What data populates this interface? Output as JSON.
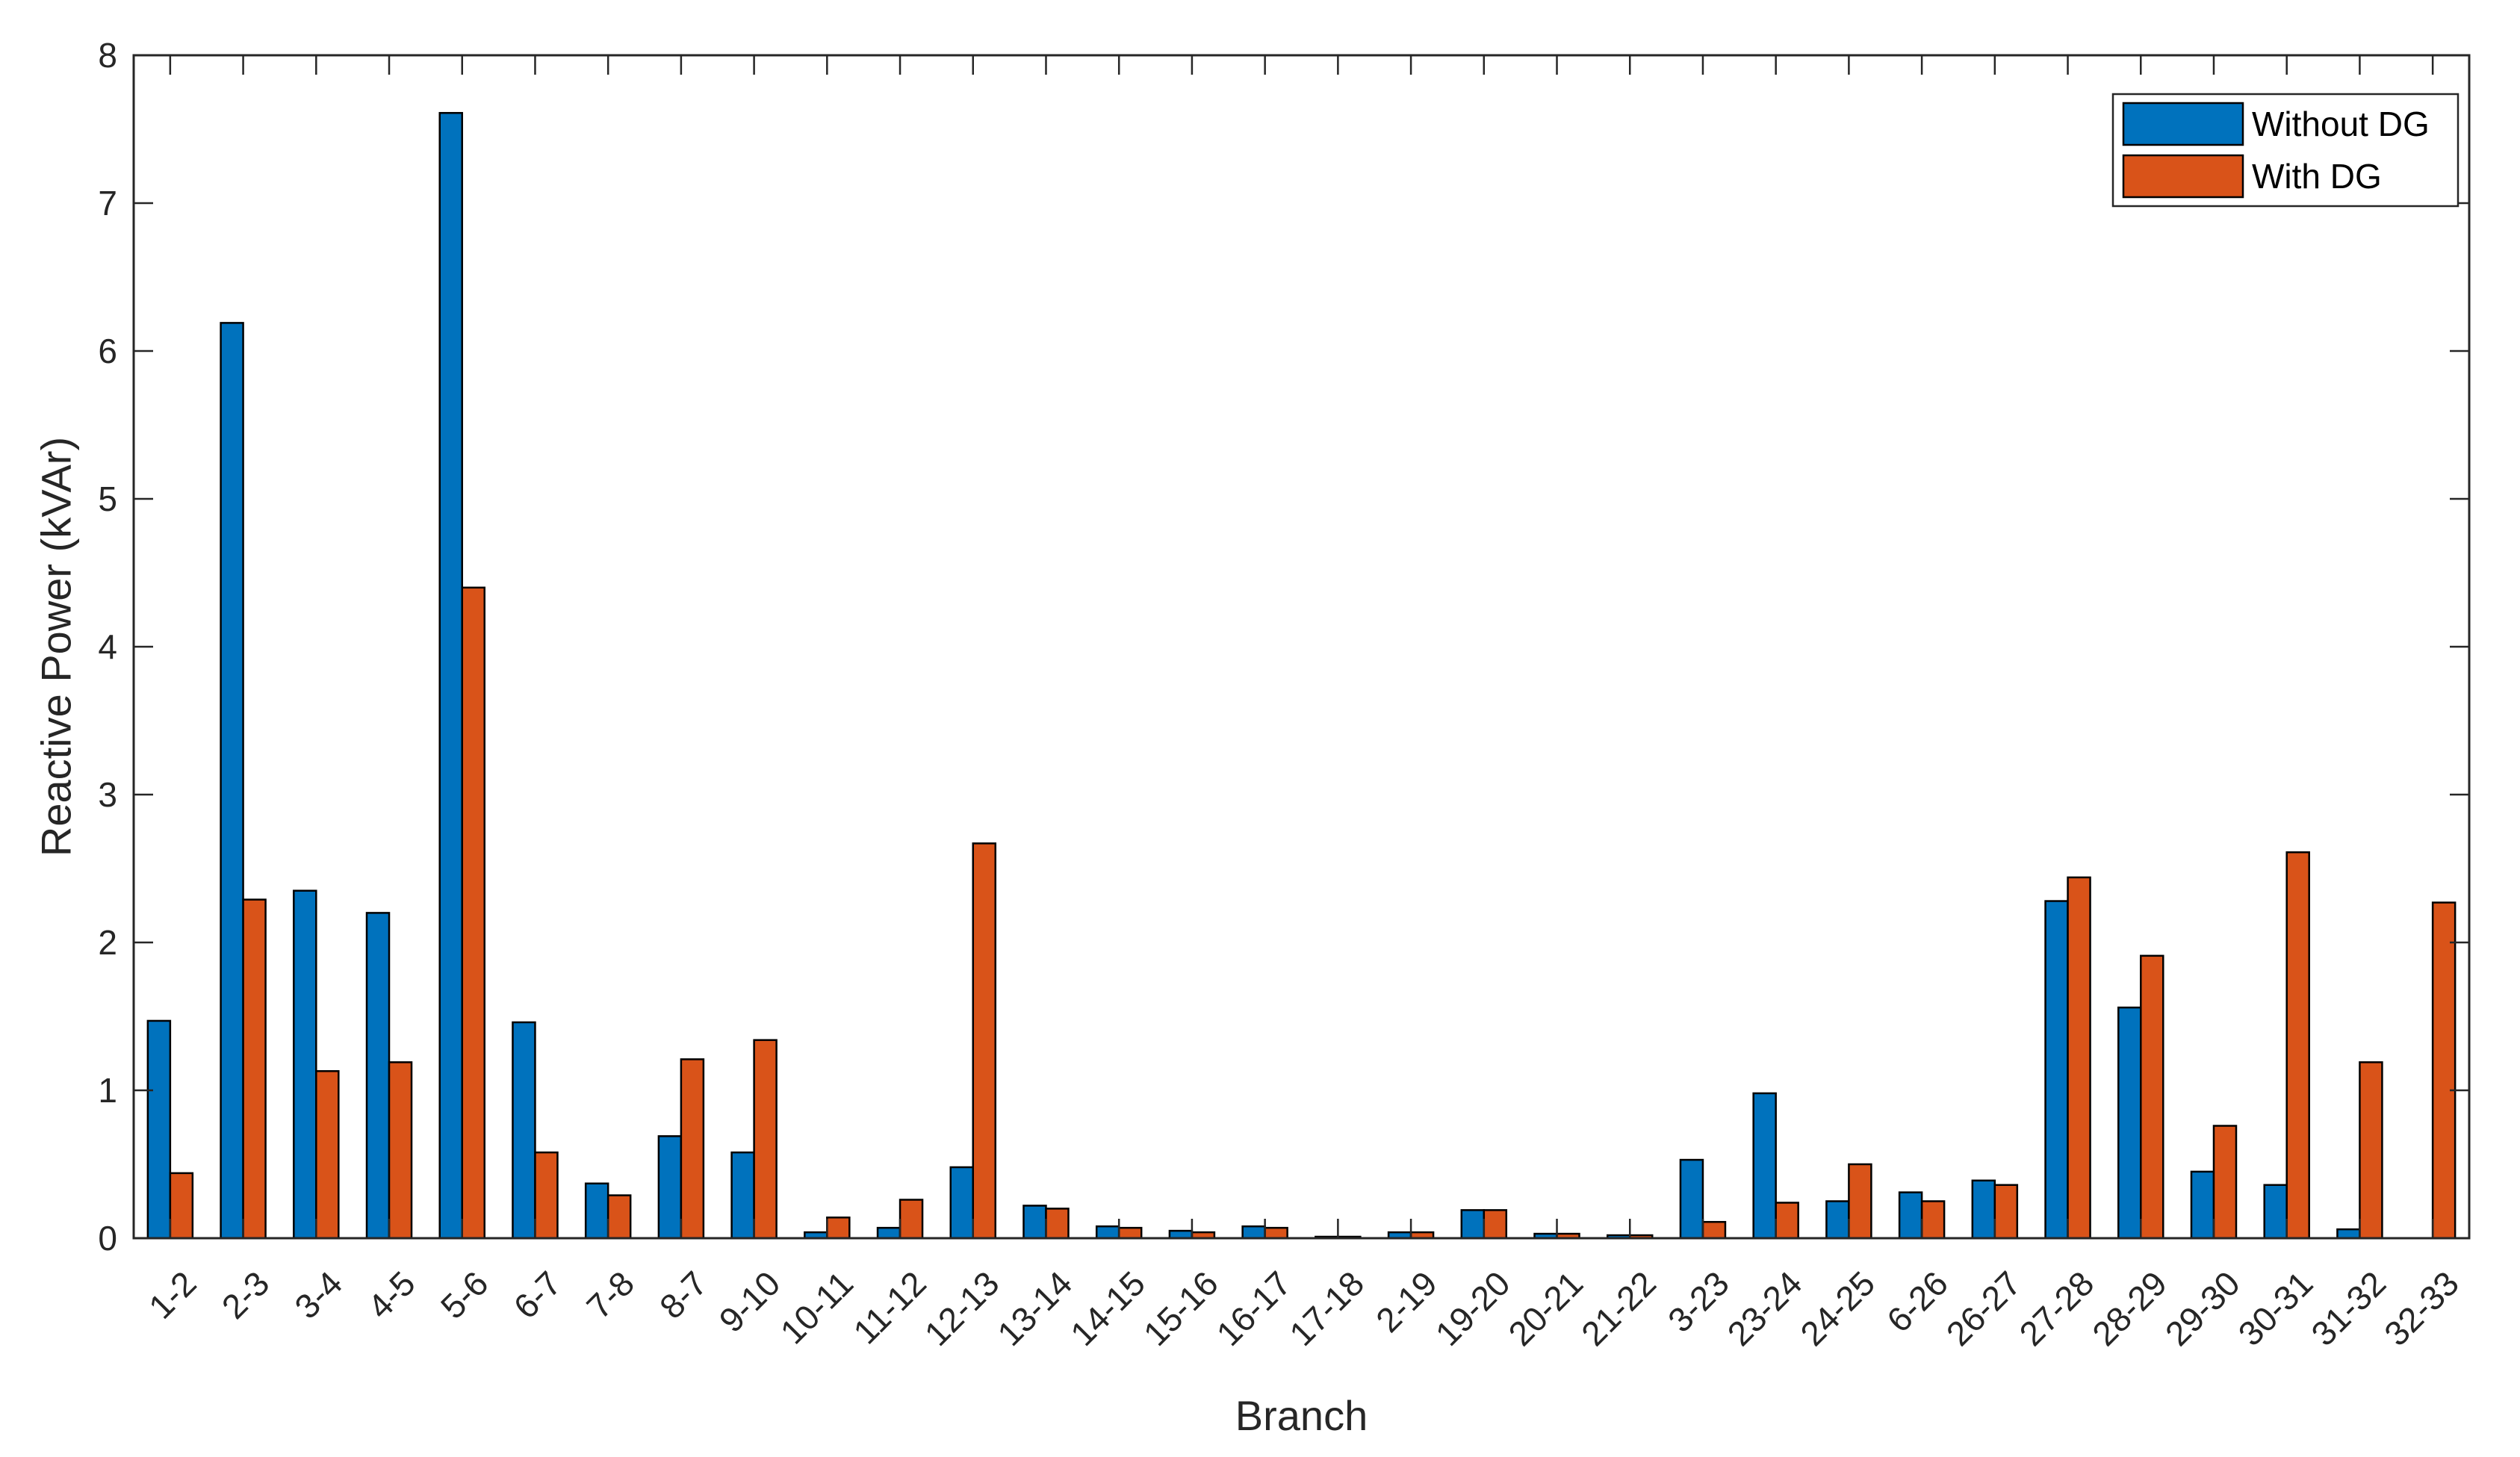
{
  "chart_data": {
    "type": "bar",
    "title": "",
    "xlabel": "Branch",
    "ylabel": "Reactive Power (kVAr)",
    "ylim": [
      0,
      8
    ],
    "yticks": [
      0,
      1,
      2,
      3,
      4,
      5,
      6,
      7,
      8
    ],
    "grid": false,
    "legend_position": "top-right",
    "categories": [
      "1-2",
      "2-3",
      "3-4",
      "4-5",
      "5-6",
      "6-7",
      "7-8",
      "8-7",
      "9-10",
      "10-11",
      "11-12",
      "12-13",
      "13-14",
      "14-15",
      "15-16",
      "16-17",
      "17-18",
      "2-19",
      "19-20",
      "20-21",
      "21-22",
      "3-23",
      "23-24",
      "24-25",
      "6-26",
      "26-27",
      "27-28",
      "28-29",
      "29-30",
      "30-31",
      "31-32",
      "32-33"
    ],
    "series": [
      {
        "name": "Without DG",
        "color": "#0072BD",
        "values": [
          1.47,
          6.19,
          2.35,
          2.2,
          7.61,
          1.46,
          0.37,
          0.69,
          0.58,
          0.04,
          0.07,
          0.48,
          0.22,
          0.08,
          0.05,
          0.08,
          0.01,
          0.04,
          0.19,
          0.03,
          0.02,
          0.53,
          0.98,
          0.25,
          0.31,
          0.39,
          2.28,
          1.56,
          0.45,
          0.36,
          0.06,
          0.0
        ]
      },
      {
        "name": "With DG",
        "color": "#D95319",
        "values": [
          0.44,
          2.29,
          1.13,
          1.19,
          4.4,
          0.58,
          0.29,
          1.21,
          1.34,
          0.14,
          0.26,
          2.67,
          0.2,
          0.07,
          0.04,
          0.07,
          0.01,
          0.04,
          0.19,
          0.03,
          0.02,
          0.11,
          0.24,
          0.5,
          0.25,
          0.36,
          2.44,
          1.91,
          0.76,
          2.61,
          1.19,
          2.27
        ]
      }
    ]
  }
}
